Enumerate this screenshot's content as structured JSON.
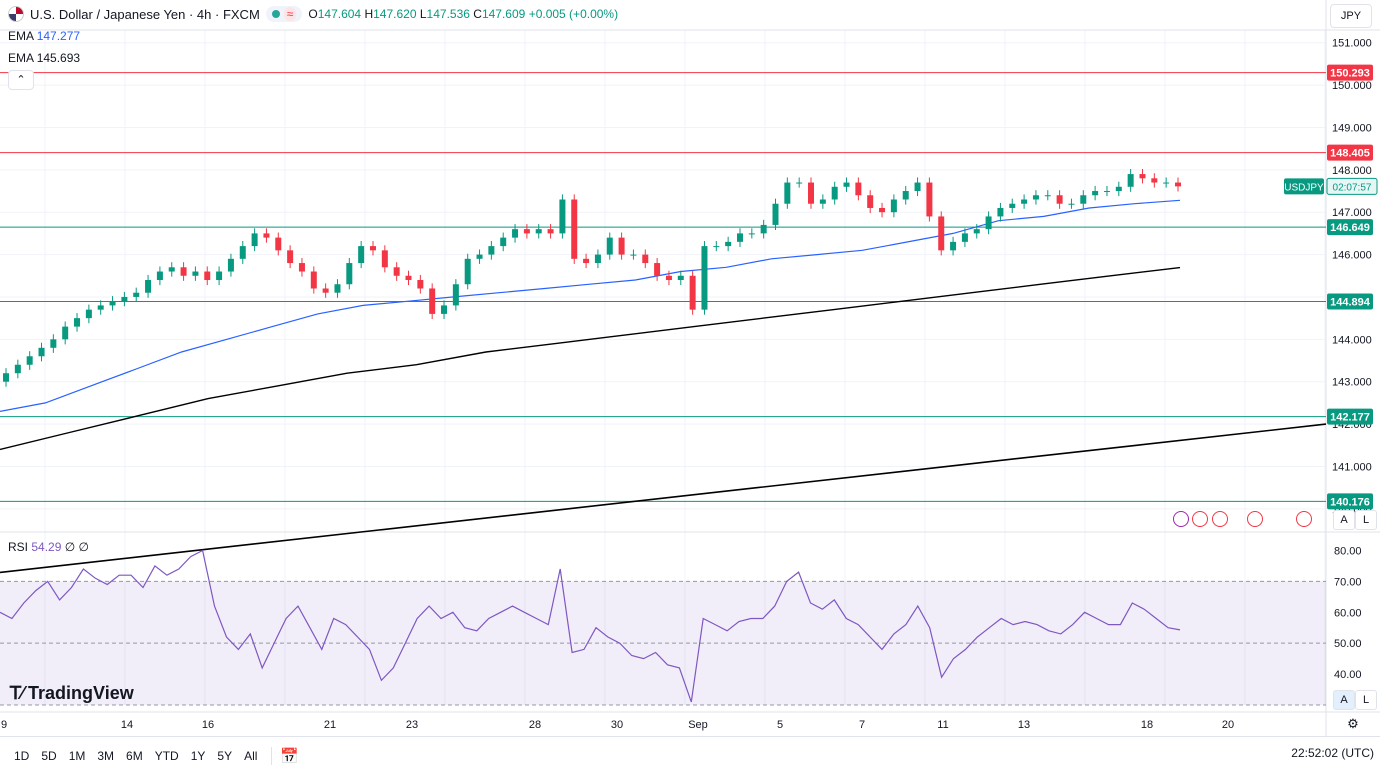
{
  "header": {
    "title": "U.S. Dollar / Japanese Yen · 4h · FXCM",
    "ohlc": {
      "o_label": "O",
      "o": "147.604",
      "h_label": "H",
      "h": "147.620",
      "l_label": "L",
      "l": "147.536",
      "c_label": "C",
      "c": "147.609",
      "change": "+0.005 (+0.00%)"
    },
    "currency": "JPY"
  },
  "indicators": {
    "ema1": {
      "label": "EMA",
      "value": "147.277"
    },
    "ema2": {
      "label": "EMA",
      "value": "145.693"
    },
    "rsi": {
      "label": "RSI",
      "value": "54.29",
      "extra1": "∅",
      "extra2": "∅"
    }
  },
  "price_axis": {
    "ticks": [
      "151.000",
      "150.000",
      "149.000",
      "148.000",
      "147.000",
      "146.000",
      "145.000",
      "144.000",
      "143.000",
      "142.000",
      "141.000",
      "140.000"
    ],
    "ticks_values": [
      151,
      150,
      149,
      148,
      147,
      146,
      145,
      144,
      143,
      142,
      141,
      140
    ]
  },
  "levels": [
    {
      "label": "150.293",
      "value": 150.293,
      "color": "#f23645"
    },
    {
      "label": "148.405",
      "value": 148.405,
      "color": "#f23645"
    },
    {
      "label": "146.649",
      "value": 146.649,
      "color": "#089981"
    },
    {
      "label": "144.894",
      "value": 144.894,
      "color": "#089981"
    },
    {
      "label": "142.177",
      "value": 142.177,
      "color": "#089981"
    },
    {
      "label": "140.176",
      "value": 140.176,
      "color": "#089981"
    }
  ],
  "symbol_badge": {
    "symbol": "USDJPY",
    "countdown": "02:07:57"
  },
  "rsi_axis": {
    "ticks": [
      "80.00",
      "70.00",
      "60.00",
      "50.00",
      "40.00"
    ],
    "values": [
      80,
      70,
      60,
      50,
      40
    ]
  },
  "time_axis": {
    "labels": [
      "9",
      "14",
      "16",
      "21",
      "23",
      "28",
      "30",
      "Sep",
      "5",
      "7",
      "11",
      "13",
      "18",
      "20"
    ]
  },
  "bottom": {
    "ranges": [
      "1D",
      "5D",
      "1M",
      "3M",
      "6M",
      "YTD",
      "1Y",
      "5Y",
      "All"
    ],
    "time": "22:52:02 (UTC)"
  },
  "logo": "TradingView",
  "axis_buttons": {
    "auto": "A",
    "log": "L"
  },
  "colors": {
    "up": "#089981",
    "down": "#f23645",
    "ema_fast": "#2962ff",
    "ema_slow": "#000000",
    "rsi": "#7e57c2"
  },
  "chart_data": {
    "type": "candlestick",
    "closes": [
      143.2,
      143.4,
      143.6,
      143.8,
      144.0,
      144.3,
      144.5,
      144.7,
      144.8,
      144.9,
      145.0,
      145.1,
      145.4,
      145.6,
      145.7,
      145.5,
      145.6,
      145.4,
      145.6,
      145.9,
      146.2,
      146.5,
      146.4,
      146.1,
      145.8,
      145.6,
      145.2,
      145.1,
      145.3,
      145.8,
      146.2,
      146.1,
      145.7,
      145.5,
      145.4,
      145.2,
      144.6,
      144.8,
      145.3,
      145.9,
      146.0,
      146.2,
      146.4,
      146.6,
      146.5,
      146.6,
      146.5,
      147.3,
      145.9,
      145.8,
      146.0,
      146.4,
      146.0,
      146.0,
      145.8,
      145.5,
      145.4,
      145.5,
      144.7,
      146.2,
      146.2,
      146.3,
      146.5,
      146.5,
      146.7,
      147.2,
      147.7,
      147.7,
      147.2,
      147.3,
      147.6,
      147.7,
      147.4,
      147.1,
      147.0,
      147.3,
      147.5,
      147.7,
      146.9,
      146.1,
      146.3,
      146.5,
      146.6,
      146.9,
      147.1,
      147.2,
      147.3,
      147.4,
      147.4,
      147.2,
      147.2,
      147.4,
      147.5,
      147.5,
      147.6,
      147.9,
      147.8,
      147.7,
      147.7,
      147.61
    ],
    "ema_fast_points": [
      142.3,
      142.5,
      142.9,
      143.3,
      143.7,
      144.0,
      144.3,
      144.6,
      144.8,
      144.9,
      145.0,
      145.1,
      145.2,
      145.3,
      145.4,
      145.6,
      145.7,
      145.9,
      146.0,
      146.1,
      146.3,
      146.5,
      146.8,
      146.9,
      147.1,
      147.2,
      147.28
    ],
    "ema_slow_points": [
      141.4,
      141.8,
      142.2,
      142.6,
      142.9,
      143.2,
      143.4,
      143.7,
      143.9,
      144.1,
      144.3,
      144.5,
      144.7,
      144.9,
      145.1,
      145.3,
      145.5,
      145.693
    ],
    "ema_200_points": [
      138.5,
      139.0,
      139.5,
      140.0,
      140.5,
      141.0,
      141.5,
      142.0
    ],
    "rsi_points": [
      60,
      58,
      63,
      67,
      70,
      64,
      68,
      74,
      71,
      69,
      72,
      72,
      68,
      75,
      72,
      74,
      78,
      80,
      62,
      52,
      48,
      53,
      42,
      50,
      58,
      62,
      55,
      48,
      58,
      56,
      52,
      48,
      38,
      42,
      50,
      58,
      62,
      58,
      60,
      55,
      54,
      58,
      60,
      62,
      60,
      58,
      56,
      74,
      47,
      48,
      55,
      52,
      50,
      46,
      45,
      47,
      43,
      42,
      31,
      58,
      56,
      54,
      57,
      58,
      58,
      62,
      70,
      73,
      63,
      61,
      64,
      58,
      56,
      52,
      48,
      53,
      56,
      62,
      55,
      39,
      45,
      48,
      52,
      55,
      58,
      56,
      57,
      56,
      54,
      53,
      56,
      60,
      58,
      56,
      56,
      63,
      61,
      58,
      55,
      54.29
    ],
    "ylim": [
      139.5,
      151.3
    ],
    "rsi_range": [
      30,
      85
    ]
  }
}
